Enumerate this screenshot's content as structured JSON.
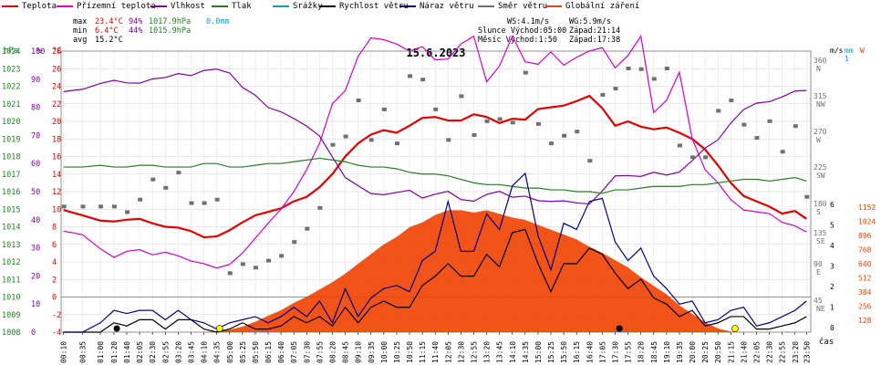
{
  "legend": [
    {
      "label": "Teplota",
      "color": "#e00000"
    },
    {
      "label": "Přízemní teplota",
      "color": "#d000d0"
    },
    {
      "label": "Vlhkost",
      "color": "#8000a0"
    },
    {
      "label": "Tlak",
      "color": "#208020"
    },
    {
      "label": "Srážky",
      "color": "#00a0c0"
    },
    {
      "label": "Rychlost větru",
      "color": "#000000"
    },
    {
      "label": "Náraz větru",
      "color": "#000090"
    },
    {
      "label": "Směr větru",
      "color": "#707070"
    },
    {
      "label": "Globální záření",
      "color": "#f04000"
    }
  ],
  "stats": {
    "max_label": "max",
    "min_label": "min",
    "avg_label": "avg",
    "max_temp": "23.4°C",
    "max_hum": "94%",
    "max_press": "1017.9hPa",
    "rain": "0.0mm",
    "min_temp": "6.4°C",
    "min_hum": "44%",
    "min_press": "1015.9hPa",
    "avg_temp": "15.2°C"
  },
  "info": {
    "ws": "WS:4.1m/s",
    "wg": "WG:5.9m/s",
    "sunrise": "Slunce Východ:05:00",
    "sunset": "Západ:21:14",
    "moonrise": "Měsíc  Východ:1:50",
    "moonset": "Západ:17:38"
  },
  "chart_data": {
    "type": "line",
    "title": "15.6.2023",
    "xlabel": "čas",
    "axes": {
      "hPa": {
        "label": "hPa",
        "range": [
          1008,
          1024
        ],
        "ticks": [
          "1024",
          "1023",
          "1022",
          "1021",
          "1020",
          "1019",
          "1018",
          "1017",
          "1016",
          "1015",
          "1014",
          "1013",
          "1012",
          "1011",
          "1010",
          "1009",
          "1008"
        ]
      },
      "percent": {
        "label": "%",
        "range": [
          0,
          100
        ],
        "ticks": [
          "100",
          "90",
          "80",
          "70",
          "60",
          "50",
          "40",
          "30",
          "20",
          "10",
          "0"
        ]
      },
      "celsius": {
        "label": "°C",
        "range": [
          -4,
          28
        ],
        "ticks": [
          "28",
          "26",
          "24",
          "22",
          "20",
          "18",
          "16",
          "14",
          "12",
          "10",
          "8",
          "6",
          "4",
          "2",
          "0",
          "-2",
          "-4"
        ]
      },
      "degrees": {
        "label": "°",
        "ticks": [
          "360 N",
          "315 NW",
          "270 W",
          "225 SW",
          "180 S",
          "135 SE",
          "90 E",
          "45 NE"
        ]
      },
      "ms": {
        "label": "m/s",
        "ticks": [
          "6",
          "5",
          "4",
          "3",
          "2",
          "1",
          "0"
        ]
      },
      "mm": {
        "label": "mm",
        "ticks": [
          "1"
        ]
      },
      "W": {
        "label": "W",
        "range": [
          0,
          1152
        ],
        "ticks": [
          "1152",
          "1024",
          "896",
          "768",
          "640",
          "512",
          "384",
          "256",
          "128"
        ]
      }
    },
    "x": [
      "00:10",
      "00:35",
      "01:00",
      "01:20",
      "01:40",
      "02:05",
      "02:30",
      "02:55",
      "03:20",
      "03:45",
      "04:10",
      "04:35",
      "05:00",
      "05:25",
      "05:50",
      "06:15",
      "06:40",
      "07:05",
      "07:30",
      "07:55",
      "08:20",
      "08:45",
      "09:10",
      "09:35",
      "10:00",
      "10:25",
      "10:50",
      "11:15",
      "11:40",
      "12:05",
      "12:30",
      "12:55",
      "13:20",
      "13:45",
      "14:10",
      "14:35",
      "15:00",
      "15:25",
      "15:50",
      "16:15",
      "16:40",
      "17:05",
      "17:30",
      "17:55",
      "18:20",
      "18:45",
      "19:10",
      "19:35",
      "20:00",
      "20:25",
      "20:50",
      "21:15",
      "21:40",
      "22:05",
      "22:30",
      "22:55",
      "23:20",
      "23:50"
    ],
    "x_values": [
      0.17,
      1.5,
      2.75,
      3.7,
      4.6,
      5.5,
      6.4,
      7.3,
      8.2,
      9.1,
      10,
      10.9,
      11.8,
      12.7,
      13.6,
      14.5,
      15.4,
      16.3,
      17.2,
      18.1,
      19,
      19.9,
      20.8,
      21.7,
      22.6,
      23.5,
      24.4,
      25.3,
      26.2,
      27.1,
      28,
      28.9,
      29.8,
      30.7,
      31.6,
      32.5,
      33.4,
      34.3,
      35.2,
      36.1,
      37,
      37.9,
      38.8,
      39.7,
      40.6,
      41.5,
      42.4,
      43.3,
      44.2,
      45.1,
      46,
      46.9,
      47.8,
      48.7,
      49.6,
      50.5,
      51.4,
      52.2
    ],
    "series": [
      {
        "name": "Teplota",
        "axis": "celsius",
        "color": "#e00000",
        "values": [
          9.9,
          9.3,
          8.7,
          8.6,
          8.8,
          8.9,
          8.4,
          8.0,
          7.9,
          7.5,
          6.8,
          6.9,
          7.6,
          8.5,
          9.3,
          9.7,
          10.1,
          10.9,
          11.4,
          12.5,
          14.0,
          16.0,
          17.5,
          18.5,
          19.0,
          18.7,
          19.5,
          20.4,
          20.5,
          20.1,
          20.1,
          20.8,
          20.5,
          19.8,
          20.3,
          20.2,
          21.4,
          21.6,
          21.8,
          22.3,
          22.9,
          21.5,
          19.5,
          20.0,
          19.4,
          19.1,
          19.3,
          18.7,
          18.0,
          16.8,
          15.0,
          13.0,
          11.5,
          10.9,
          10.3,
          9.5,
          9.8,
          8.9
        ]
      },
      {
        "name": "Přízemní teplota",
        "axis": "celsius",
        "color": "#d000d0",
        "values": [
          7.5,
          7.1,
          5.5,
          4.5,
          5.2,
          5.4,
          4.8,
          5.1,
          4.7,
          4.1,
          3.8,
          3.3,
          3.7,
          5.0,
          6.7,
          8.4,
          10.0,
          12.0,
          14.5,
          17.5,
          22.0,
          23.5,
          27.4,
          29.5,
          29.3,
          28.8,
          28.0,
          28.5,
          27.0,
          27.1,
          28.8,
          29.7,
          24.5,
          26.3,
          29.7,
          26.8,
          26.5,
          27.9,
          26.4,
          27.3,
          28.0,
          28.4,
          26.1,
          27.5,
          29.7,
          21.0,
          22.4,
          25.6,
          18.0,
          14.5,
          13.0,
          11.1,
          9.9,
          9.7,
          9.5,
          8.5,
          8.1,
          7.4
        ]
      },
      {
        "name": "Vlhkost",
        "axis": "percent",
        "color": "#8000a0",
        "values": [
          85.6,
          86.4,
          88.5,
          89.6,
          88.7,
          88.6,
          90.1,
          90.6,
          92.0,
          91.3,
          93.1,
          93.6,
          92.2,
          87.1,
          84.3,
          79.9,
          78.4,
          76.0,
          73.3,
          69.8,
          62.3,
          55.0,
          52.1,
          49.3,
          48.9,
          49.7,
          50.5,
          47.7,
          49.1,
          50.1,
          47.2,
          46.6,
          49.0,
          50.1,
          48.0,
          48.4,
          46.8,
          46.5,
          46.7,
          46.0,
          45.6,
          50.2,
          55.6,
          55.7,
          55.4,
          56.9,
          55.9,
          57.0,
          61.0,
          65.5,
          68.4,
          74.4,
          79.2,
          81.5,
          82.0,
          83.7,
          85.8,
          86.0
        ]
      },
      {
        "name": "Tlak",
        "axis": "hPa",
        "color": "#208020",
        "values": [
          1017.4,
          1017.4,
          1017.5,
          1017.4,
          1017.4,
          1017.5,
          1017.5,
          1017.4,
          1017.4,
          1017.4,
          1017.6,
          1017.6,
          1017.4,
          1017.4,
          1017.5,
          1017.6,
          1017.6,
          1017.7,
          1017.8,
          1017.9,
          1017.8,
          1017.7,
          1017.5,
          1017.4,
          1017.4,
          1017.3,
          1017.1,
          1017.0,
          1017.0,
          1016.9,
          1016.7,
          1016.5,
          1016.4,
          1016.4,
          1016.3,
          1016.2,
          1016.2,
          1016.1,
          1016.1,
          1016.0,
          1016.0,
          1015.9,
          1016.1,
          1016.1,
          1016.2,
          1016.3,
          1016.3,
          1016.3,
          1016.4,
          1016.4,
          1016.5,
          1016.6,
          1016.7,
          1016.7,
          1016.6,
          1016.7,
          1016.8,
          1016.6
        ]
      },
      {
        "name": "Globální záření",
        "axis": "W",
        "color": "#f04000",
        "values": [
          0,
          0,
          0,
          0,
          0,
          0,
          0,
          0,
          0,
          0,
          0,
          8,
          20,
          45,
          85,
          135,
          180,
          240,
          290,
          350,
          410,
          480,
          560,
          640,
          720,
          780,
          860,
          900,
          960,
          1000,
          1000,
          980,
          1000,
          970,
          940,
          920,
          880,
          840,
          800,
          760,
          700,
          650,
          590,
          530,
          450,
          380,
          310,
          220,
          150,
          80,
          30,
          5,
          0,
          0,
          0,
          0,
          0,
          0
        ]
      },
      {
        "name": "Rychlost větru",
        "axis": "ms",
        "color": "#000000",
        "values": [
          0,
          0,
          0,
          0.3,
          0.2,
          0.4,
          0.4,
          0.1,
          0.4,
          0.4,
          0.1,
          0,
          0.1,
          0.3,
          0.1,
          0.1,
          0.2,
          0.5,
          0.3,
          0.5,
          0.2,
          0.8,
          0.3,
          0.8,
          1.0,
          0.8,
          0.8,
          1.5,
          1.8,
          2.2,
          1.8,
          1.8,
          2.5,
          2.1,
          3.2,
          3.3,
          2.2,
          1.3,
          2.2,
          2.2,
          2.7,
          2.5,
          1.9,
          1.4,
          1.7,
          1.1,
          0.9,
          0.5,
          0.7,
          0.2,
          0.3,
          0.5,
          0.5,
          0.1,
          0.1,
          0.2,
          0.3,
          0.5
        ]
      },
      {
        "name": "Náraz větru",
        "axis": "ms",
        "color": "#000090",
        "values": [
          0,
          0,
          0.3,
          0.7,
          0.6,
          0.7,
          0.7,
          0.4,
          0.7,
          0.4,
          0.3,
          0.1,
          0.3,
          0.4,
          0.5,
          0.3,
          0.5,
          0.8,
          0.5,
          1.0,
          0.3,
          1.4,
          0.5,
          1.1,
          1.4,
          1.5,
          1.3,
          2.3,
          2.6,
          4.2,
          2.6,
          2.6,
          3.8,
          3.3,
          4.7,
          5.1,
          3.1,
          2.0,
          3.5,
          3.3,
          4.2,
          4.3,
          2.9,
          2.3,
          2.7,
          1.8,
          1.4,
          0.9,
          1.0,
          0.3,
          0.4,
          0.7,
          0.8,
          0.2,
          0.3,
          0.5,
          0.7,
          1.0
        ]
      },
      {
        "name": "Směr větru",
        "axis": "degrees",
        "color": "#707070",
        "values": [
          136,
          136,
          136,
          136,
          128,
          146,
          175,
          163,
          185,
          141,
          141,
          146,
          40,
          53,
          48,
          58,
          65,
          85,
          104,
          134,
          225,
          237,
          289,
          232,
          276,
          227,
          324,
          319,
          276,
          232,
          295,
          239,
          259,
          262,
          257,
          329,
          255,
          227,
          238,
          244,
          202,
          297,
          306,
          335,
          334,
          320,
          335,
          224,
          207,
          207,
          274,
          289,
          254,
          235,
          259,
          215,
          252,
          150
        ]
      }
    ]
  }
}
